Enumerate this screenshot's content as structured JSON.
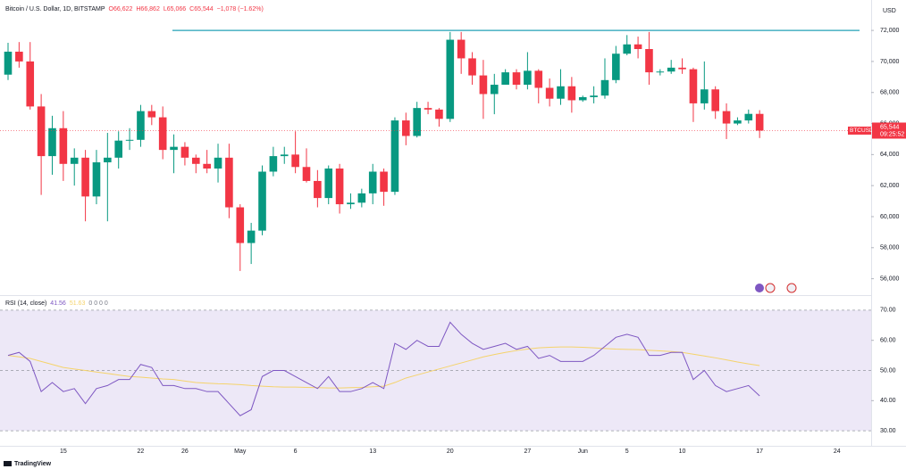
{
  "chart_data": [
    {
      "type": "candlestick",
      "title": "Bitcoin / U.S. Dollar, 1D, BITSTAMP",
      "legend_values": [
        "O66,622",
        "H66,862",
        "L65,066",
        "C65,544",
        "−1,078 (−1.62%)"
      ],
      "currency": "USD",
      "price_label": {
        "symbol": "BTCUSD",
        "price": "65,544",
        "countdown": "09:25:52"
      },
      "hline": 72000,
      "up_color": "#089981",
      "down_color": "#f23645",
      "hline_color": "#22a0b5",
      "categories": [
        null,
        null,
        null,
        null,
        null,
        "15",
        null,
        null,
        null,
        null,
        null,
        null,
        "22",
        null,
        null,
        null,
        "26",
        null,
        null,
        null,
        null,
        "May",
        null,
        null,
        null,
        null,
        "6",
        null,
        null,
        null,
        null,
        null,
        null,
        "13",
        null,
        null,
        null,
        null,
        null,
        null,
        "20",
        null,
        null,
        null,
        null,
        null,
        null,
        "27",
        null,
        null,
        null,
        null,
        "Jun",
        null,
        null,
        null,
        "5",
        null,
        null,
        null,
        null,
        "10",
        null,
        null,
        null,
        null,
        null,
        null,
        "17",
        null,
        null,
        null,
        null,
        null,
        null,
        "24",
        null,
        null,
        null
      ],
      "open": [
        69150,
        70630,
        70000,
        67100,
        63900,
        65700,
        63400,
        63800,
        61300,
        63500,
        63800,
        64900,
        64950,
        66800,
        66400,
        64300,
        64500,
        63800,
        63400,
        63100,
        63800,
        60600,
        58300,
        59100,
        62900,
        63900,
        64000,
        63200,
        62300,
        61200,
        63100,
        60800,
        60900,
        61500,
        62900,
        61600,
        66200,
        65200,
        67000,
        66900,
        66300,
        71400,
        70200,
        69100,
        67900,
        68500,
        69300,
        68500,
        69400,
        68300,
        67600,
        68400,
        67500,
        67700,
        67800,
        68800,
        70500,
        71100,
        70800,
        69300,
        69350,
        69600,
        69500,
        67300,
        68200,
        66800,
        66000,
        66200,
        66622,
        null,
        null,
        null,
        null,
        null,
        null,
        null,
        null,
        null,
        null
      ],
      "high": [
        71200,
        71250,
        71250,
        67900,
        66500,
        66800,
        64400,
        64300,
        64300,
        65400,
        65500,
        65700,
        67200,
        67200,
        67100,
        65300,
        64800,
        64000,
        64300,
        64700,
        64700,
        60800,
        59600,
        63300,
        64500,
        64500,
        65500,
        64400,
        63000,
        63300,
        63400,
        61500,
        61800,
        63400,
        63100,
        66400,
        66700,
        67400,
        67400,
        67000,
        71900,
        71900,
        70600,
        70100,
        69200,
        69500,
        69500,
        70600,
        69500,
        68900,
        69500,
        69000,
        67800,
        68400,
        70200,
        71000,
        71700,
        71600,
        71900,
        69500,
        70100,
        70200,
        69600,
        70000,
        68400,
        67300,
        66400,
        66900,
        66862,
        null,
        null,
        null,
        null,
        null,
        null,
        null,
        null,
        null,
        null
      ],
      "low": [
        68800,
        69600,
        66900,
        61400,
        62700,
        62300,
        62000,
        59700,
        60800,
        59700,
        63100,
        64300,
        64500,
        65900,
        63700,
        62800,
        63300,
        62800,
        62800,
        62200,
        59900,
        56500,
        56950,
        58800,
        62600,
        63400,
        62800,
        62200,
        60600,
        60800,
        60200,
        60500,
        60600,
        60800,
        60700,
        61400,
        64600,
        65100,
        66600,
        65800,
        66100,
        69200,
        68500,
        66300,
        66600,
        68500,
        68200,
        68200,
        67300,
        67100,
        67200,
        66700,
        67400,
        67300,
        67600,
        68600,
        70400,
        70200,
        68500,
        69100,
        69200,
        69200,
        66100,
        66900,
        66300,
        65000,
        65900,
        66000,
        65066,
        null,
        null,
        null,
        null,
        null,
        null,
        null,
        null,
        null,
        null
      ],
      "close": [
        70630,
        70000,
        67100,
        63900,
        65700,
        63400,
        63800,
        61300,
        63500,
        63800,
        64900,
        64950,
        66800,
        66400,
        64300,
        64500,
        63800,
        63400,
        63100,
        63800,
        60600,
        58300,
        59100,
        62900,
        63900,
        64000,
        63200,
        62300,
        61200,
        63100,
        60800,
        60900,
        61500,
        62900,
        61600,
        66200,
        65200,
        67000,
        66900,
        66300,
        71400,
        70200,
        69100,
        67900,
        68500,
        69300,
        68500,
        69400,
        68300,
        67600,
        68400,
        67500,
        67700,
        67800,
        68800,
        70500,
        71100,
        70800,
        69300,
        69350,
        69600,
        69500,
        67300,
        68200,
        66800,
        66000,
        66200,
        66622,
        65544,
        null,
        null,
        null,
        null,
        null,
        null,
        null,
        null,
        null,
        null
      ],
      "ylim": [
        55000,
        73960
      ],
      "yticks": [
        {
          "value": 56000,
          "label": "56,000"
        },
        {
          "value": 58000,
          "label": "58,000"
        },
        {
          "value": 60000,
          "label": "60,000"
        },
        {
          "value": 62000,
          "label": "62,000"
        },
        {
          "value": 64000,
          "label": "64,000"
        },
        {
          "value": 66000,
          "label": "66,000"
        },
        {
          "value": 68000,
          "label": "68,000"
        },
        {
          "value": 70000,
          "label": "70,000"
        },
        {
          "value": 72000,
          "label": "72,000"
        }
      ],
      "footer": "TradingView"
    },
    {
      "type": "line",
      "title": "RSI (14, close)",
      "indicator_extra": "0 0 0 0",
      "band": [
        30,
        70
      ],
      "band_color": "#ede8f7",
      "series": [
        {
          "name": "RSI",
          "color": "#7e57c2",
          "values": [
            55,
            56,
            53,
            43,
            46,
            43,
            44,
            39,
            44,
            45,
            47,
            47,
            52,
            51,
            45,
            45,
            44,
            44,
            43,
            43,
            39,
            35,
            37,
            48,
            50,
            50,
            48,
            46,
            44,
            48,
            43,
            43,
            44,
            46,
            44,
            59,
            57,
            60,
            58,
            58,
            66,
            62,
            59,
            57,
            58,
            59,
            57,
            58,
            54,
            55,
            53,
            53,
            53,
            55,
            58,
            61,
            62,
            61,
            55,
            55,
            56,
            56,
            47,
            50,
            45,
            43,
            44,
            45,
            41.56,
            null,
            null,
            null,
            null,
            null,
            null,
            null,
            null,
            null,
            null
          ]
        },
        {
          "name": "RSI-based MA",
          "color": "#f5d36b",
          "values": [
            55,
            54.5,
            54,
            53,
            52,
            51,
            50.5,
            50,
            49.5,
            49,
            48.5,
            48,
            47.8,
            47.5,
            47.2,
            47,
            46.5,
            46,
            45.8,
            45.6,
            45.5,
            45.3,
            45,
            44.8,
            44.6,
            44.5,
            44.5,
            44.4,
            44.3,
            44.2,
            44.2,
            44.3,
            44.4,
            44.6,
            44.8,
            46,
            47.5,
            48.5,
            49.5,
            50.5,
            51.5,
            52.5,
            53.5,
            54.5,
            55.3,
            56,
            56.6,
            57.1,
            57.5,
            57.7,
            57.8,
            57.8,
            57.7,
            57.5,
            57.3,
            57.1,
            57,
            56.9,
            56.7,
            56.5,
            56.3,
            56,
            55.4,
            54.8,
            54.2,
            53.5,
            52.8,
            52.2,
            51.63,
            null,
            null,
            null,
            null,
            null,
            null,
            null,
            null,
            null,
            null
          ]
        }
      ],
      "ylim": [
        25.9,
        74.4
      ],
      "yticks": [
        {
          "value": 30,
          "label": "30.00"
        },
        {
          "value": 40,
          "label": "40.00"
        },
        {
          "value": 50,
          "label": "50.00"
        },
        {
          "value": 60,
          "label": "60.00"
        },
        {
          "value": 70,
          "label": "70.00"
        }
      ]
    }
  ]
}
